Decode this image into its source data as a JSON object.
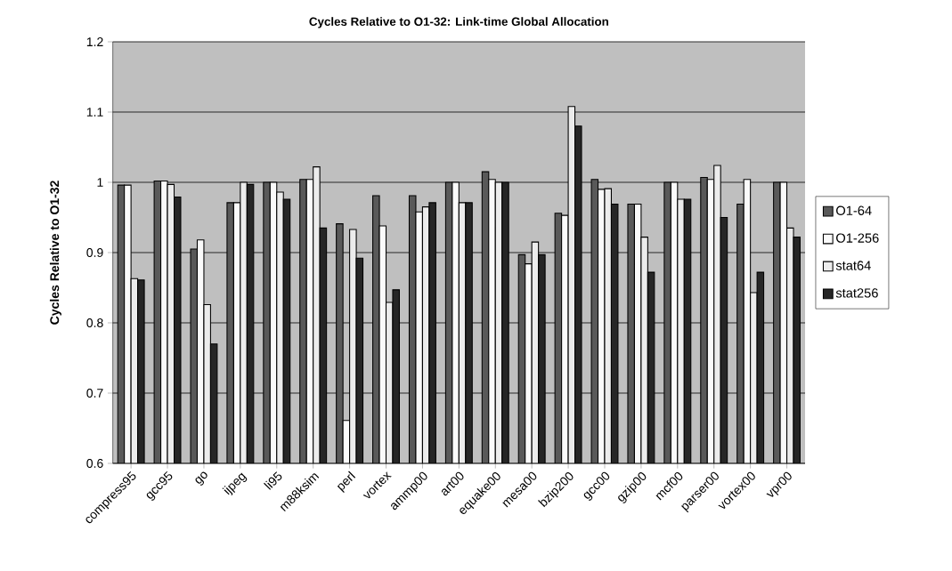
{
  "chart_data": {
    "type": "bar",
    "title": "Cycles Relative to O1-32: Link-time Global Allocation",
    "ylabel": "Cycles Relative to O1-32",
    "categories": [
      "compress95",
      "gcc95",
      "go",
      "ijpeg",
      "li95",
      "m88ksim",
      "perl",
      "vortex",
      "ammp00",
      "art00",
      "equake00",
      "mesa00",
      "bzip200",
      "gcc00",
      "gzip00",
      "mcf00",
      "parser00",
      "vortex00",
      "vpr00"
    ],
    "series": [
      {
        "name": "O1-64",
        "color": "#595959",
        "values": [
          0.996,
          1.002,
          0.905,
          0.971,
          1.0,
          1.004,
          0.941,
          0.981,
          0.981,
          1.0,
          1.015,
          0.897,
          0.956,
          1.004,
          0.969,
          1.0,
          1.007,
          0.969,
          1.0
        ]
      },
      {
        "name": "O1-256",
        "color": "#fafafa",
        "values": [
          0.996,
          1.002,
          0.918,
          0.971,
          1.0,
          1.004,
          0.661,
          0.938,
          0.958,
          1.0,
          1.004,
          0.884,
          0.953,
          0.99,
          0.969,
          1.0,
          1.004,
          1.004,
          1.0
        ]
      },
      {
        "name": "stat64",
        "color": "#ececec",
        "values": [
          0.863,
          0.997,
          0.826,
          1.0,
          0.986,
          1.022,
          0.933,
          0.829,
          0.965,
          0.971,
          1.0,
          0.915,
          1.108,
          0.991,
          0.922,
          0.976,
          1.024,
          0.843,
          0.935
        ]
      },
      {
        "name": "stat256",
        "color": "#262626",
        "values": [
          0.861,
          0.979,
          0.77,
          0.997,
          0.976,
          0.935,
          0.892,
          0.847,
          0.971,
          0.971,
          1.0,
          0.897,
          1.08,
          0.969,
          0.872,
          0.976,
          0.95,
          0.872,
          0.922
        ]
      }
    ],
    "ylim": [
      0.6,
      1.2
    ],
    "yticks": [
      0.6,
      0.7,
      0.8,
      0.9,
      1,
      1.1,
      1.2
    ],
    "grid": "y",
    "legend": "right"
  }
}
